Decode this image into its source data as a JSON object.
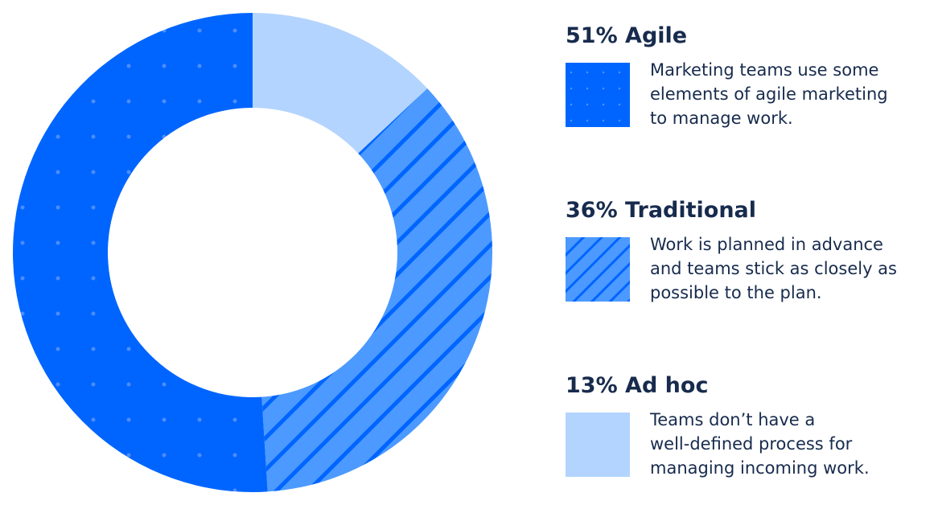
{
  "chart_data": {
    "type": "donut",
    "categories": [
      "Agile",
      "Traditional",
      "Ad hoc"
    ],
    "values": [
      51,
      36,
      13
    ],
    "value_labels": [
      "51%",
      "36%",
      "13%"
    ],
    "colors": [
      "#0065ff",
      "#4c9aff",
      "#b3d4ff"
    ],
    "descriptions": [
      [
        "Marketing teams use some",
        "elements of agile marketing",
        "to manage work."
      ],
      [
        "Work is planned in advance",
        "and teams stick as closely as",
        "possible to the plan."
      ],
      [
        "Teams don’t have a",
        "well-defined process for",
        "managing incoming work."
      ]
    ]
  }
}
